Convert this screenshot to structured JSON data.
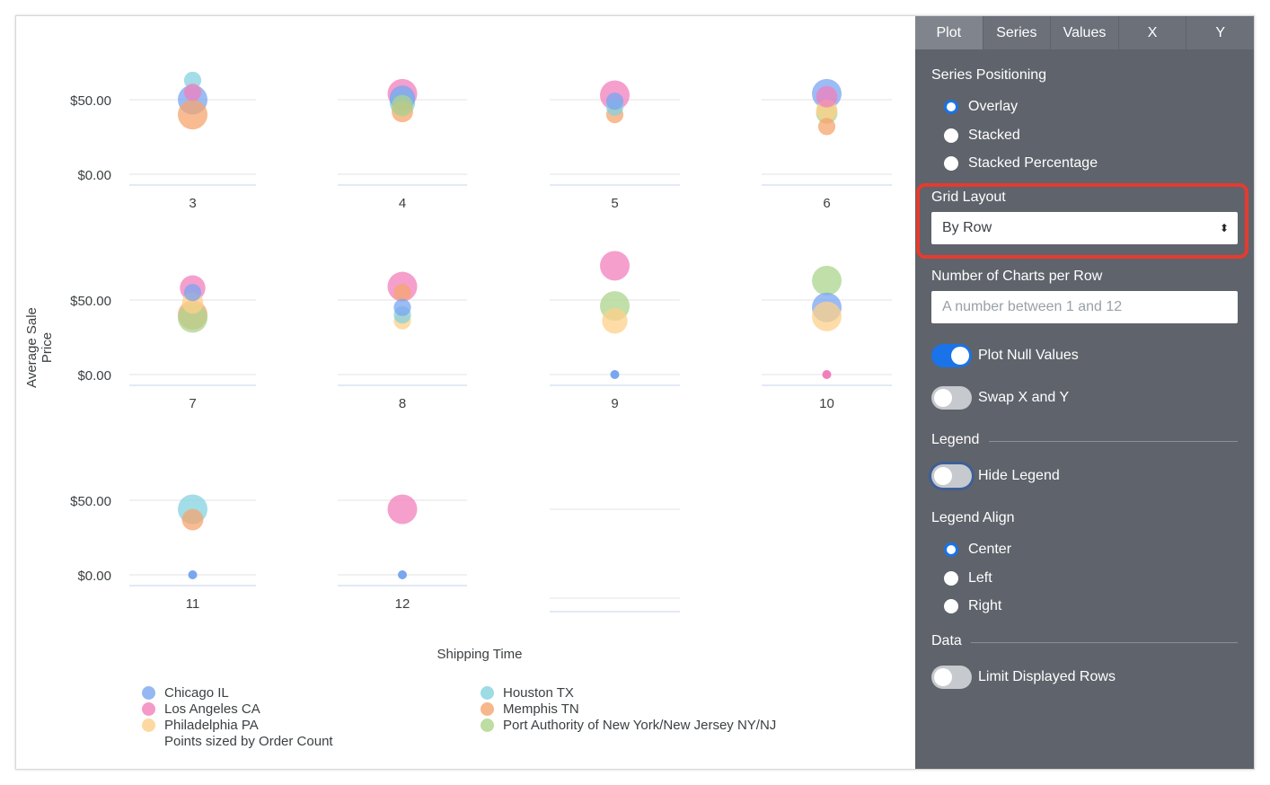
{
  "panel": {
    "tabs": [
      "Plot",
      "Series",
      "Values",
      "X",
      "Y"
    ],
    "active_tab": "Plot",
    "series_positioning": {
      "label": "Series Positioning",
      "options": [
        "Overlay",
        "Stacked",
        "Stacked Percentage"
      ],
      "selected": "Overlay"
    },
    "grid_layout": {
      "label": "Grid Layout",
      "value": "By Row"
    },
    "charts_per_row": {
      "label": "Number of Charts per Row",
      "placeholder": "A number between 1 and 12",
      "value": ""
    },
    "toggles": {
      "plot_null": {
        "label": "Plot Null Values",
        "on": true
      },
      "swap_xy": {
        "label": "Swap X and Y",
        "on": false
      },
      "hide_legend": {
        "label": "Hide Legend",
        "on": false
      }
    },
    "legend_section": "Legend",
    "legend_align": {
      "label": "Legend Align",
      "options": [
        "Center",
        "Left",
        "Right"
      ],
      "selected": "Center"
    },
    "data_section": "Data",
    "limit_rows": {
      "label": "Limit Displayed Rows",
      "on": false
    },
    "highlight_color": "#e53b2f",
    "accent_color": "#1a73e8"
  },
  "chart_data": {
    "type": "scatter",
    "xlabel": "Shipping Time",
    "ylabel": "Average Sale Price",
    "y_ticks": [
      "$0.00",
      "$50.00"
    ],
    "ylim": [
      0,
      75
    ],
    "size_note": "Points sized by Order Count",
    "legend_position": "bottom",
    "series": [
      {
        "name": "Chicago IL",
        "color": "#7aa6f0"
      },
      {
        "name": "Houston TX",
        "color": "#84d2df"
      },
      {
        "name": "Los Angeles CA",
        "color": "#f27fbc"
      },
      {
        "name": "Memphis TN",
        "color": "#f5a46e"
      },
      {
        "name": "Philadelphia PA",
        "color": "#fdd08a"
      },
      {
        "name": "Port Authority of New York/New Jersey NY/NJ",
        "color": "#acd48c"
      }
    ],
    "facets": [
      {
        "label": "3",
        "points": [
          [
            "Houston TX",
            63,
            2
          ],
          [
            "Los Angeles CA",
            55,
            2
          ],
          [
            "Chicago IL",
            50,
            5
          ],
          [
            "Memphis TN",
            40,
            5
          ]
        ]
      },
      {
        "label": "4",
        "points": [
          [
            "Memphis TN",
            42,
            3
          ],
          [
            "Port Authority of New York/New Jersey NY/NJ",
            46,
            3
          ],
          [
            "Houston TX",
            48,
            4
          ],
          [
            "Los Angeles CA",
            54,
            5
          ],
          [
            "Chicago IL",
            51,
            4
          ]
        ]
      },
      {
        "label": "5",
        "points": [
          [
            "Memphis TN",
            40,
            2
          ],
          [
            "Houston TX",
            45,
            2
          ],
          [
            "Los Angeles CA",
            53,
            5
          ],
          [
            "Chicago IL",
            49,
            2
          ]
        ]
      },
      {
        "label": "6",
        "points": [
          [
            "Memphis TN",
            32,
            2
          ],
          [
            "Port Authority of New York/New Jersey NY/NJ",
            41,
            3
          ],
          [
            "Philadelphia PA",
            43,
            3
          ],
          [
            "Chicago IL",
            54,
            5
          ],
          [
            "Los Angeles CA",
            52,
            3
          ]
        ]
      },
      {
        "label": "7",
        "points": [
          [
            "Los Angeles CA",
            58,
            4
          ],
          [
            "Chicago IL",
            55,
            2
          ],
          [
            "Philadelphia PA",
            48,
            3
          ],
          [
            "Memphis TN",
            40,
            5
          ],
          [
            "Port Authority of New York/New Jersey NY/NJ",
            38,
            5
          ]
        ]
      },
      {
        "label": "8",
        "points": [
          [
            "Los Angeles CA",
            59,
            5
          ],
          [
            "Memphis TN",
            55,
            2
          ],
          [
            "Philadelphia PA",
            36,
            2
          ],
          [
            "Houston TX",
            40,
            2
          ],
          [
            "Chicago IL",
            45,
            2
          ]
        ]
      },
      {
        "label": "9",
        "points": [
          [
            "Los Angeles CA",
            73,
            5
          ],
          [
            "Philadelphia PA",
            36,
            4
          ],
          [
            "Port Authority of New York/New Jersey NY/NJ",
            46,
            5
          ],
          [
            "Chicago IL",
            0,
            1
          ]
        ]
      },
      {
        "label": "10",
        "points": [
          [
            "Port Authority of New York/New Jersey NY/NJ",
            63,
            5
          ],
          [
            "Chicago IL",
            45,
            5
          ],
          [
            "Philadelphia PA",
            39,
            5
          ],
          [
            "Los Angeles CA",
            0,
            1
          ]
        ]
      },
      {
        "label": "11",
        "points": [
          [
            "Memphis TN",
            37,
            3
          ],
          [
            "Houston TX",
            44,
            5
          ],
          [
            "Chicago IL",
            0,
            1
          ]
        ]
      },
      {
        "label": "12",
        "points": [
          [
            "Los Angeles CA",
            44,
            5
          ],
          [
            "Chicago IL",
            0,
            1
          ]
        ]
      }
    ]
  }
}
